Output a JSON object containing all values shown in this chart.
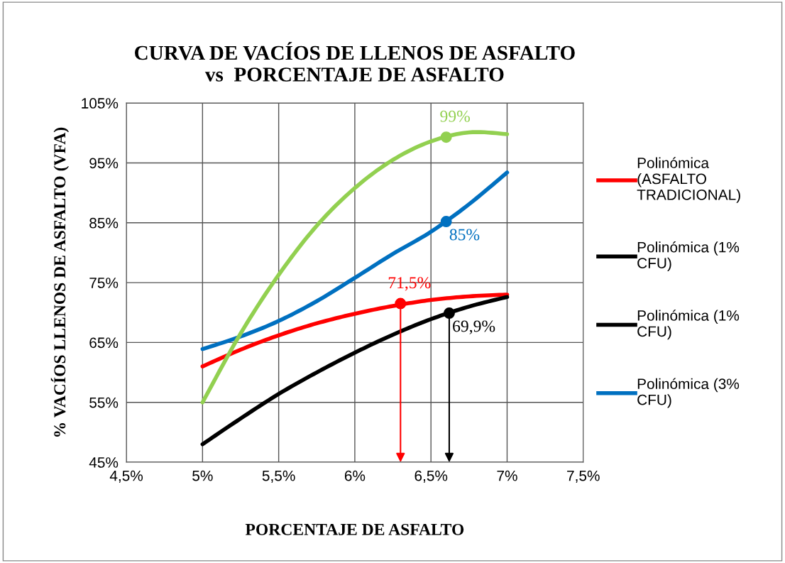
{
  "chart_data": {
    "type": "line",
    "title": "CURVA DE VACÍOS DE LLENOS DE ASFALTO\nvs  PORCENTAJE DE ASFALTO",
    "xlabel": "PORCENTAJE DE ASFALTO",
    "ylabel": "% VACÍOS LLENOS DE ASFALTO (VFA)",
    "x": [
      5,
      5.25,
      5.5,
      5.75,
      6,
      6.25,
      6.5,
      6.75,
      7
    ],
    "series": [
      {
        "name": "Polinómica\n(ASFALTO\nTRADICIONAL)",
        "color": "#ff0000",
        "values": [
          61.0,
          63.8,
          66.2,
          68.2,
          69.8,
          71.1,
          72.1,
          72.7,
          73.0
        ]
      },
      {
        "name": "Polinómica (1%\nCFU)",
        "color": "#000000",
        "values": [
          48.0,
          52.3,
          56.4,
          60.0,
          63.3,
          66.3,
          68.9,
          71.0,
          72.6
        ]
      },
      {
        "name": "Polinómica (1%\nCFU)",
        "color": "#000000",
        "values": [
          null,
          null,
          null,
          null,
          null,
          null,
          null,
          null,
          null
        ]
      },
      {
        "name": "Polinómica (3%\nCFU)",
        "color": "#0070c0",
        "values": [
          63.9,
          66.0,
          68.6,
          71.9,
          75.8,
          79.8,
          83.5,
          88.1,
          93.4
        ]
      },
      {
        "color": "#92d050",
        "values": [
          55.0,
          66.5,
          76.3,
          84.5,
          90.8,
          95.5,
          98.6,
          100.1,
          99.8
        ]
      },
      {
        "type": "scatter",
        "marker": "circle",
        "color": "#ff0000",
        "x": [
          6.3
        ],
        "values": [
          71.5
        ],
        "value_labels": [
          "71,5%"
        ],
        "line_style": "solid"
      },
      {
        "type": "scatter",
        "marker": "circle",
        "color": "#000000",
        "x": [
          6.62
        ],
        "values": [
          69.9
        ],
        "value_labels": [
          "69,9%"
        ],
        "line_style": "solid"
      },
      {
        "type": "scatter",
        "marker": "circle",
        "color": "#92d050",
        "x": [
          6.6
        ],
        "values": [
          99.3
        ],
        "value_labels": [
          "99%"
        ]
      },
      {
        "type": "scatter",
        "marker": "circle",
        "color": "#0070c0",
        "x": [
          6.6
        ],
        "values": [
          85.2
        ],
        "value_labels": [
          "85%"
        ]
      }
    ],
    "xlim": [
      4.5,
      7.5
    ],
    "xticks": [
      {
        "value": 4.5,
        "label": "4,5%"
      },
      {
        "value": 5,
        "label": "5%"
      },
      {
        "value": 5.5,
        "label": "5,5%"
      },
      {
        "value": 6,
        "label": "6%"
      },
      {
        "value": 6.5,
        "label": "6,5%"
      },
      {
        "value": 7,
        "label": "7%"
      },
      {
        "value": 7.5,
        "label": "7,5%"
      }
    ],
    "ylim": [
      45,
      105
    ],
    "yticks": [
      {
        "value": 45,
        "label": "45%"
      },
      {
        "value": 55,
        "label": "55%"
      },
      {
        "value": 65,
        "label": "65%"
      },
      {
        "value": 75,
        "label": "75%"
      },
      {
        "value": 85,
        "label": "85%"
      },
      {
        "value": 95,
        "label": "95%"
      },
      {
        "value": 105,
        "label": "105%"
      }
    ],
    "grid": true,
    "legend": "right",
    "marker": "none",
    "line_style": "solid"
  }
}
